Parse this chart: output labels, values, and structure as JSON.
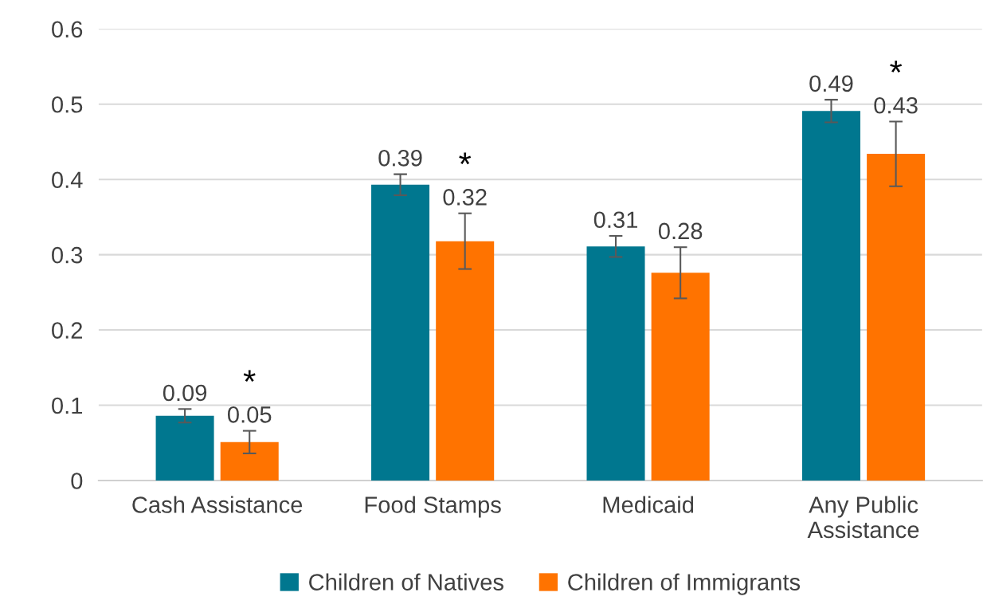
{
  "chart_data": {
    "type": "bar",
    "categories": [
      "Cash Assistance",
      "Food Stamps",
      "Medicaid",
      "Any Public\nAssistance"
    ],
    "series": [
      {
        "name": "Children of Natives",
        "color": "#00778f",
        "values": [
          0.086,
          0.393,
          0.311,
          0.491
        ],
        "errors": [
          0.009,
          0.014,
          0.014,
          0.015
        ],
        "value_labels": [
          "0.09",
          "0.39",
          "0.31",
          "0.49"
        ]
      },
      {
        "name": "Children of Immigrants",
        "color": "#ff7300",
        "values": [
          0.051,
          0.318,
          0.276,
          0.434
        ],
        "errors": [
          0.015,
          0.037,
          0.034,
          0.043
        ],
        "value_labels": [
          "0.05",
          "0.32",
          "0.28",
          "0.43"
        ]
      }
    ],
    "annotations": [
      {
        "text": "*",
        "x": "Cash Assistance",
        "y": 0.066
      },
      {
        "text": "*",
        "x": "Food Stamps",
        "y": 0.355
      },
      {
        "text": "*",
        "x": "Any Public\nAssistance",
        "y": 0.477
      }
    ],
    "ylim": [
      0,
      0.6
    ],
    "yticks": [
      0,
      0.1,
      0.2,
      0.3,
      0.4,
      0.5,
      0.6
    ],
    "grid": "y",
    "legend": "bottom"
  }
}
